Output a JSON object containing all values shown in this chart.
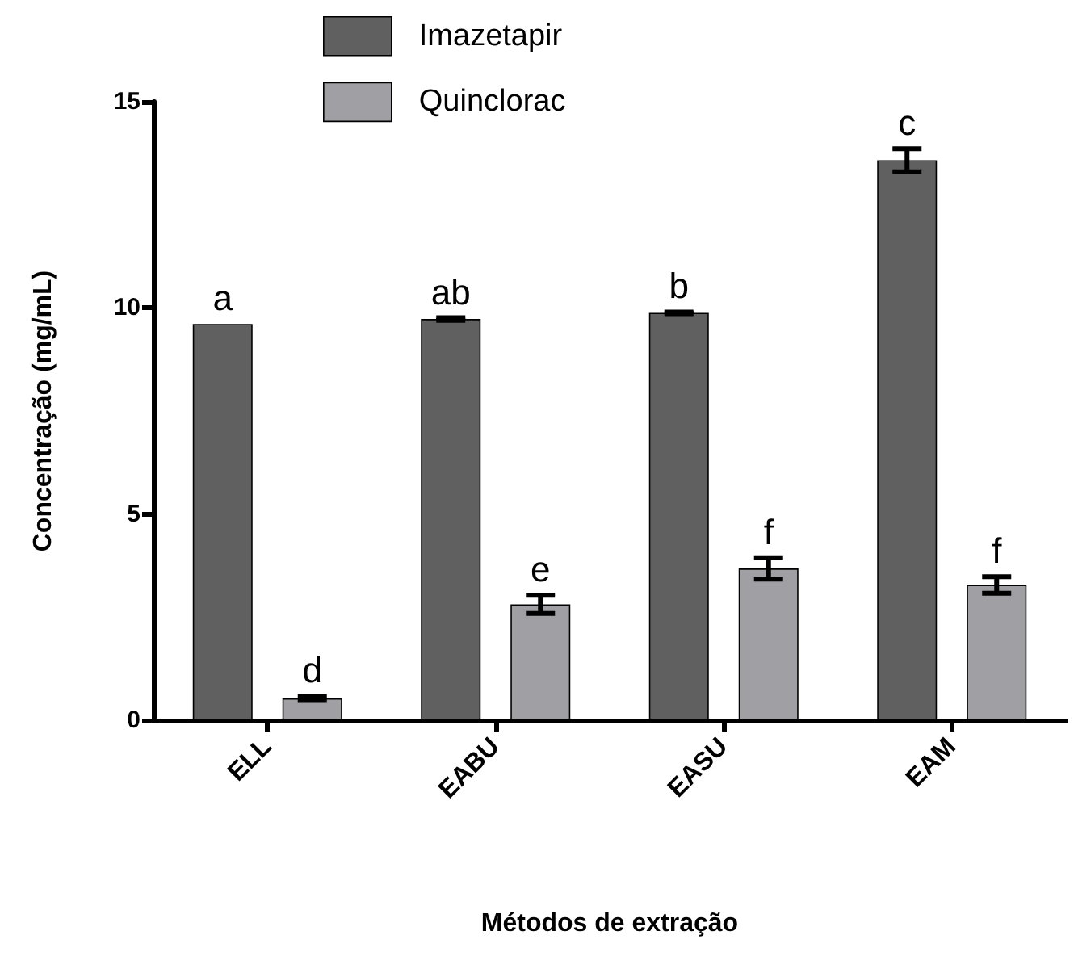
{
  "chart_data": {
    "type": "bar",
    "xlabel": "Métodos de extração",
    "ylabel": "Concentração (mg/mL)",
    "categories": [
      "ELL",
      "EABU",
      "EASU",
      "EAM"
    ],
    "series": [
      {
        "name": "Imazetapir",
        "color": "#606060",
        "values": [
          9.61,
          9.73,
          9.88,
          13.58
        ],
        "errors": [
          null,
          0.03,
          0.02,
          0.28
        ],
        "value_labels": [
          "a",
          "ab",
          "b",
          "c"
        ]
      },
      {
        "name": "Quinclorac",
        "color": "#a0a0a4",
        "values": [
          0.53,
          2.81,
          3.68,
          3.28
        ],
        "errors": [
          0.05,
          0.22,
          0.26,
          0.2
        ],
        "value_labels": [
          "d",
          "e",
          "f",
          "f"
        ]
      }
    ],
    "ylim": [
      0,
      15
    ],
    "yticks": [
      0,
      5,
      10,
      15
    ],
    "grid": false,
    "legend": "top"
  }
}
